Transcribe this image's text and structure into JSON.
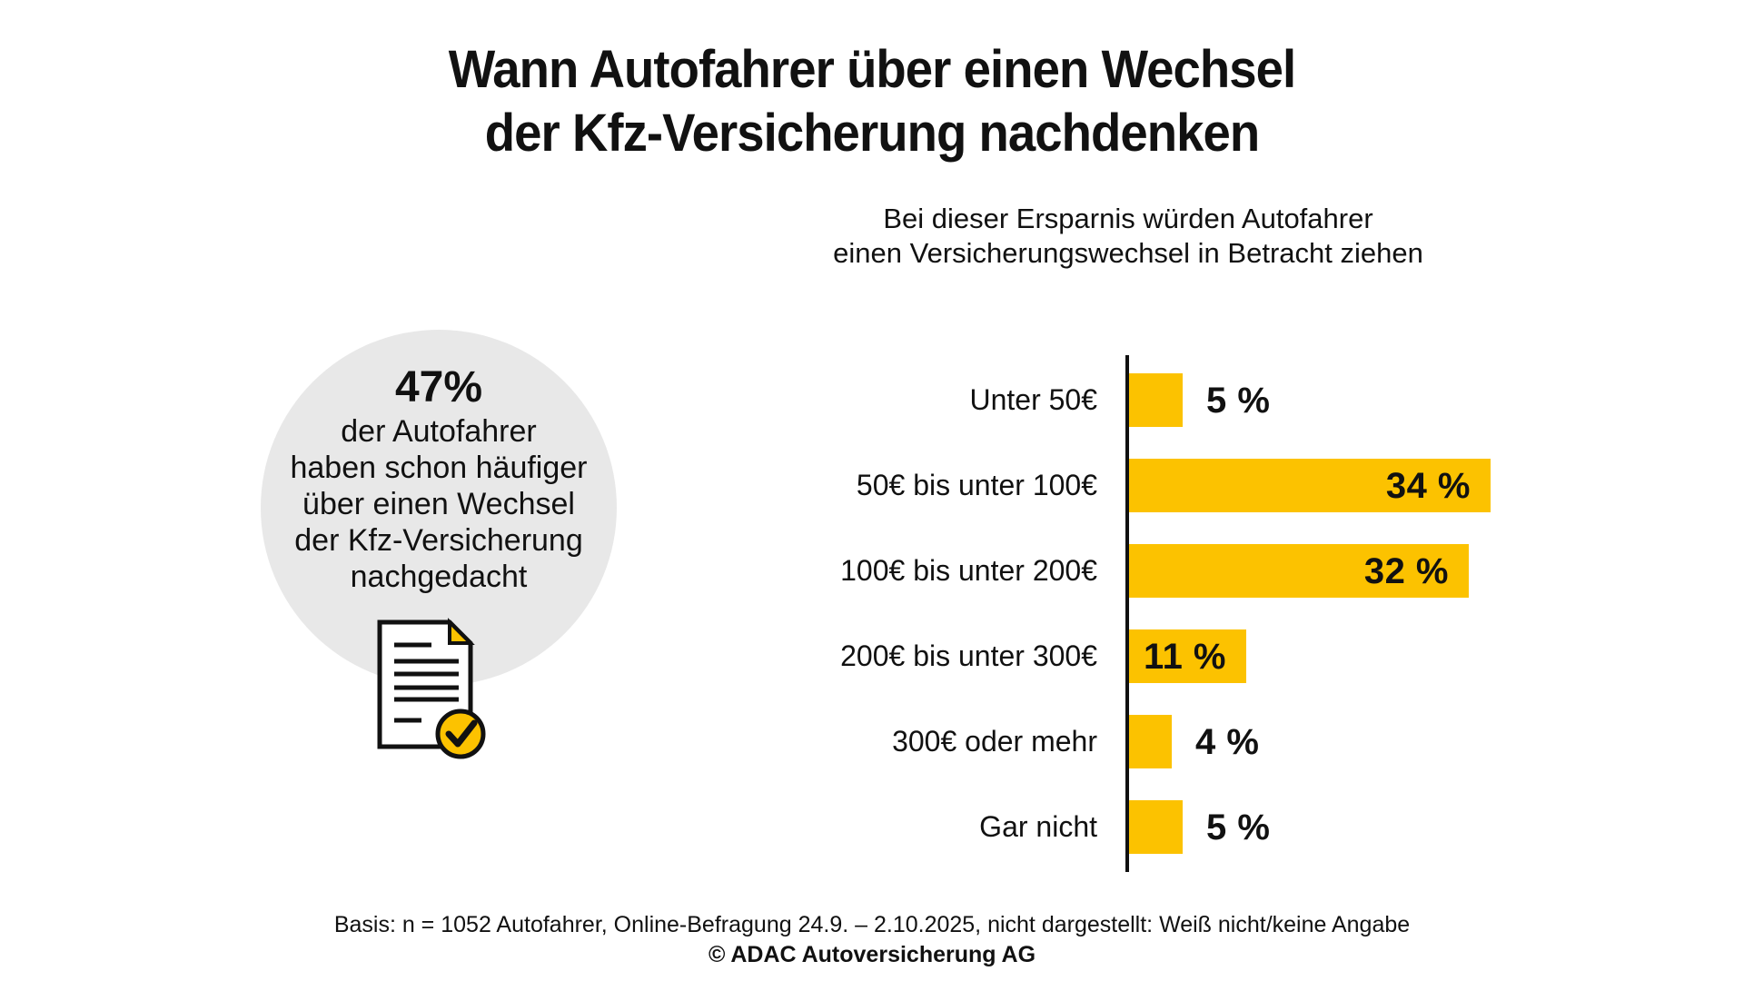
{
  "title": {
    "line1": "Wann Autofahrer über einen Wechsel",
    "line2": "der Kfz-Versicherung nachdenken"
  },
  "stat": {
    "value": "47%",
    "lines": [
      "der Autofahrer",
      "haben schon häufiger",
      "über einen Wechsel",
      "der Kfz-Versicherung",
      "nachgedacht"
    ],
    "icon": "document-checkmark-icon"
  },
  "chart_data": {
    "type": "bar",
    "orientation": "horizontal",
    "title": "Bei dieser Ersparnis würden Autofahrer einen Versicherungswechsel in Betracht ziehen",
    "title_lines": [
      "Bei dieser Ersparnis würden Autofahrer",
      "einen Versicherungswechsel in Betracht ziehen"
    ],
    "categories": [
      "Unter 50€",
      "50€ bis unter 100€",
      "100€ bis unter 200€",
      "200€ bis unter 300€",
      "300€ oder mehr",
      "Gar nicht"
    ],
    "values": [
      5,
      34,
      32,
      11,
      4,
      5
    ],
    "value_labels": [
      "5 %",
      "34 %",
      "32 %",
      "11 %",
      "4 %",
      "5 %"
    ],
    "unit": "%",
    "xlim": [
      0,
      34
    ],
    "grid": false,
    "legend": false,
    "bar_color": "#FCC200",
    "axis_color": "#111111"
  },
  "footer": {
    "basis": "Basis: n = 1052 Autofahrer, Online-Befragung 24.9. – 2.10.2025, nicht dargestellt: Weiß nicht/keine Angabe",
    "copyright": "© ADAC Autoversicherung AG"
  },
  "colors": {
    "accent_yellow": "#FCC200",
    "circle_gray": "#E8E8E8",
    "text": "#111111",
    "background": "#FFFFFF"
  }
}
